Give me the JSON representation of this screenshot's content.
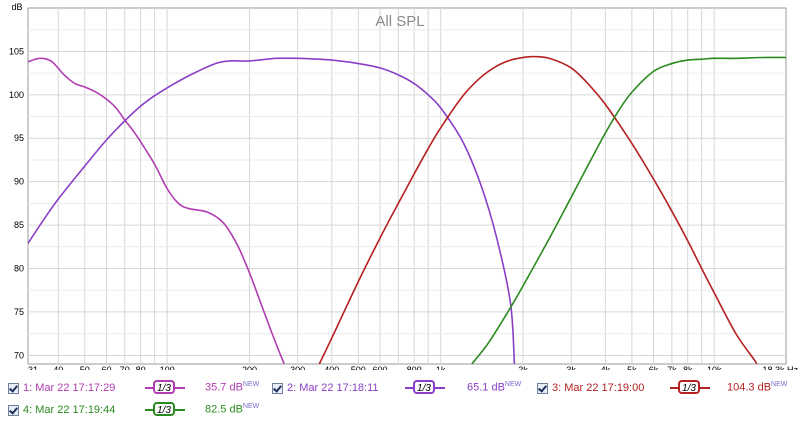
{
  "chart_data": {
    "type": "line",
    "title": "All SPL",
    "ylabel": "dB",
    "xlabel": "",
    "x_scale": "log",
    "xlim": [
      31,
      18300
    ],
    "ylim": [
      69,
      110
    ],
    "grid": true,
    "x_ticks": [
      {
        "v": 31,
        "label": "31"
      },
      {
        "v": 40,
        "label": "40"
      },
      {
        "v": 50,
        "label": "50"
      },
      {
        "v": 60,
        "label": "60"
      },
      {
        "v": 70,
        "label": "70"
      },
      {
        "v": 80,
        "label": "80"
      },
      {
        "v": 100,
        "label": "100"
      },
      {
        "v": 200,
        "label": "200"
      },
      {
        "v": 300,
        "label": "300"
      },
      {
        "v": 400,
        "label": "400"
      },
      {
        "v": 500,
        "label": "500"
      },
      {
        "v": 600,
        "label": "600"
      },
      {
        "v": 800,
        "label": "800"
      },
      {
        "v": 1000,
        "label": "1k"
      },
      {
        "v": 2000,
        "label": "2k"
      },
      {
        "v": 3000,
        "label": "3k"
      },
      {
        "v": 4000,
        "label": "4k"
      },
      {
        "v": 5000,
        "label": "5k"
      },
      {
        "v": 6000,
        "label": "6k"
      },
      {
        "v": 7000,
        "label": "7k"
      },
      {
        "v": 8000,
        "label": "8k"
      },
      {
        "v": 10000,
        "label": "10k"
      },
      {
        "v": 18300,
        "label": "18.3k Hz"
      }
    ],
    "y_ticks": [
      {
        "v": 70,
        "label": "70"
      },
      {
        "v": 75,
        "label": "75"
      },
      {
        "v": 80,
        "label": "80"
      },
      {
        "v": 85,
        "label": "85"
      },
      {
        "v": 90,
        "label": "90"
      },
      {
        "v": 95,
        "label": "95"
      },
      {
        "v": 100,
        "label": "100"
      },
      {
        "v": 105,
        "label": "105"
      }
    ],
    "series": [
      {
        "name": "1: Mar 22 17:17:29",
        "color": "#b13db1",
        "x": [
          31,
          33,
          35,
          38,
          42,
          46,
          50,
          55,
          60,
          65,
          70,
          75,
          80,
          90,
          100,
          110,
          120,
          140,
          160,
          180,
          200,
          220,
          240,
          260,
          268
        ],
        "y": [
          103.8,
          104.1,
          104.2,
          103.8,
          102.3,
          101.3,
          100.9,
          100.3,
          99.5,
          98.5,
          97.1,
          95.9,
          94.6,
          92.0,
          89.2,
          87.5,
          86.9,
          86.5,
          85.3,
          82.8,
          79.5,
          76.0,
          72.8,
          70.0,
          69.0
        ]
      },
      {
        "name": "2: Mar 22 17:18:11",
        "color": "#8a3fc8",
        "x": [
          31,
          35,
          40,
          50,
          60,
          70,
          80,
          90,
          100,
          120,
          150,
          170,
          200,
          250,
          300,
          400,
          500,
          600,
          700,
          800,
          900,
          1000,
          1200,
          1400,
          1600,
          1800,
          1860
        ],
        "y": [
          82.9,
          85.4,
          88.0,
          91.8,
          94.8,
          97.0,
          98.7,
          99.9,
          100.8,
          102.2,
          103.6,
          103.9,
          103.9,
          104.2,
          104.2,
          104.0,
          103.6,
          103.1,
          102.3,
          101.3,
          100.0,
          98.5,
          94.7,
          89.7,
          83.6,
          76.0,
          69.0
        ]
      },
      {
        "name": "3: Mar 22 17:19:00",
        "color": "#b52020",
        "x": [
          360,
          400,
          500,
          600,
          700,
          800,
          900,
          1000,
          1200,
          1400,
          1600,
          1800,
          2000,
          2200,
          2500,
          3000,
          3500,
          4000,
          5000,
          6000,
          7000,
          8000,
          9000,
          10000,
          12000,
          14000,
          14300
        ],
        "y": [
          69.0,
          72.0,
          78.5,
          83.5,
          87.5,
          90.9,
          93.8,
          96.2,
          99.8,
          102.0,
          103.3,
          104.0,
          104.3,
          104.4,
          104.2,
          103.1,
          101.1,
          98.9,
          94.4,
          90.3,
          86.6,
          83.2,
          80.0,
          77.2,
          72.5,
          69.5,
          69.0
        ]
      },
      {
        "name": "4: Mar 22 17:19:44",
        "color": "#2a8a1e",
        "x": [
          1300,
          1500,
          1800,
          2000,
          2500,
          3000,
          3500,
          4000,
          4500,
          5000,
          6000,
          7000,
          8000,
          9000,
          10000,
          12000,
          15000,
          18300
        ],
        "y": [
          69.0,
          71.5,
          75.5,
          78.0,
          83.5,
          88.2,
          92.2,
          95.6,
          98.3,
          100.3,
          102.7,
          103.6,
          104.0,
          104.1,
          104.2,
          104.2,
          104.3,
          104.3
        ]
      }
    ]
  },
  "legend": [
    {
      "label": "1: Mar 22 17:17:29",
      "smoothing": "1/3",
      "value": "35.7 dB",
      "badge": "NEW",
      "color": "#b13db1"
    },
    {
      "label": "2: Mar 22 17:18:11",
      "smoothing": "1/3",
      "value": "65.1 dB",
      "badge": "NEW",
      "color": "#8a3fc8"
    },
    {
      "label": "3: Mar 22 17:19:00",
      "smoothing": "1/3",
      "value": "104.3 dB",
      "badge": "NEW",
      "color": "#b52020"
    },
    {
      "label": "4: Mar 22 17:19:44",
      "smoothing": "1/3",
      "value": "82.5 dB",
      "badge": "NEW",
      "color": "#2a8a1e"
    }
  ]
}
